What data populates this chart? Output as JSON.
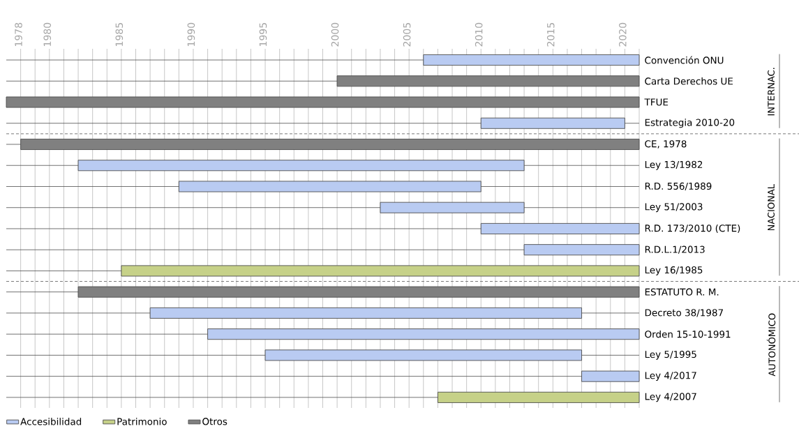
{
  "chart_data": {
    "type": "bar",
    "orientation": "horizontal",
    "categories": [
      "Convención ONU",
      "Carta Derechos UE",
      "TFUE",
      "Estrategia 2010-20",
      "CE, 1978",
      "Ley 13/1982",
      "R.D. 556/1989",
      "Ley 51/2003",
      "R.D. 173/2010 (CTE)",
      "R.D.L.1/2013",
      "Ley 16/1985",
      "ESTATUTO R. M.",
      "Decreto 38/1987",
      "Orden 15-10-1991",
      "Ley 5/1995",
      "Ley 4/2017",
      "Ley 4/2007"
    ],
    "series": [
      {
        "name": "Accesibilidad",
        "color": "#b9cbf2",
        "base": [
          2006,
          null,
          null,
          2010,
          null,
          1982,
          1989,
          2003,
          2010,
          2013,
          null,
          null,
          1987,
          1991,
          1995,
          2017,
          null
        ],
        "values": [
          15,
          null,
          null,
          10,
          null,
          31,
          21,
          10,
          11,
          8,
          null,
          null,
          30,
          30,
          22,
          4,
          null
        ]
      },
      {
        "name": "Patrimonio",
        "color": "#c6d188",
        "base": [
          null,
          null,
          null,
          null,
          null,
          null,
          null,
          null,
          null,
          null,
          1985,
          null,
          null,
          null,
          null,
          null,
          2007
        ],
        "values": [
          null,
          null,
          null,
          null,
          null,
          null,
          null,
          null,
          null,
          null,
          36,
          null,
          null,
          null,
          null,
          null,
          14
        ]
      },
      {
        "name": "Otros",
        "color": "#808080",
        "base": [
          null,
          2000,
          1977,
          null,
          1978,
          null,
          null,
          null,
          null,
          null,
          null,
          1982,
          null,
          null,
          null,
          null,
          null
        ],
        "values": [
          null,
          21,
          44,
          null,
          43,
          null,
          null,
          null,
          null,
          null,
          null,
          39,
          null,
          null,
          null,
          null,
          null
        ]
      }
    ],
    "xlim": [
      1977,
      2021
    ],
    "xticks": [
      1978,
      {
        "value": 1979,
        "label": null
      },
      1980,
      {
        "value": 1981,
        "label": null
      },
      {
        "value": 1982,
        "label": null
      },
      {
        "value": 1983,
        "label": null
      },
      {
        "value": 1984,
        "label": null
      },
      1985,
      {
        "value": 1986,
        "label": null
      },
      {
        "value": 1987,
        "label": null
      },
      {
        "value": 1988,
        "label": null
      },
      {
        "value": 1989,
        "label": null
      },
      1990,
      {
        "value": 1991,
        "label": null
      },
      {
        "value": 1992,
        "label": null
      },
      {
        "value": 1993,
        "label": null
      },
      {
        "value": 1994,
        "label": null
      },
      1995,
      {
        "value": 1996,
        "label": null
      },
      {
        "value": 1997,
        "label": null
      },
      {
        "value": 1998,
        "label": null
      },
      {
        "value": 1999,
        "label": null
      },
      2000,
      {
        "value": 2001,
        "label": null
      },
      {
        "value": 2002,
        "label": null
      },
      {
        "value": 2003,
        "label": null
      },
      {
        "value": 2004,
        "label": null
      },
      2005,
      {
        "value": 2006,
        "label": null
      },
      {
        "value": 2007,
        "label": null
      },
      {
        "value": 2008,
        "label": null
      },
      {
        "value": 2009,
        "label": null
      },
      2010,
      {
        "value": 2011,
        "label": null
      },
      {
        "value": 2012,
        "label": null
      },
      {
        "value": 2013,
        "label": null
      },
      {
        "value": 2014,
        "label": null
      },
      2015,
      {
        "value": 2016,
        "label": null
      },
      {
        "value": 2017,
        "label": null
      },
      {
        "value": 2018,
        "label": null
      },
      {
        "value": 2019,
        "label": null
      },
      2020,
      {
        "value": 2021,
        "label": null
      }
    ],
    "annotations": [
      "INTERNAC.",
      "NACIONAL",
      "AUTONÓMICO"
    ],
    "grid": true,
    "legend": "bottom"
  }
}
